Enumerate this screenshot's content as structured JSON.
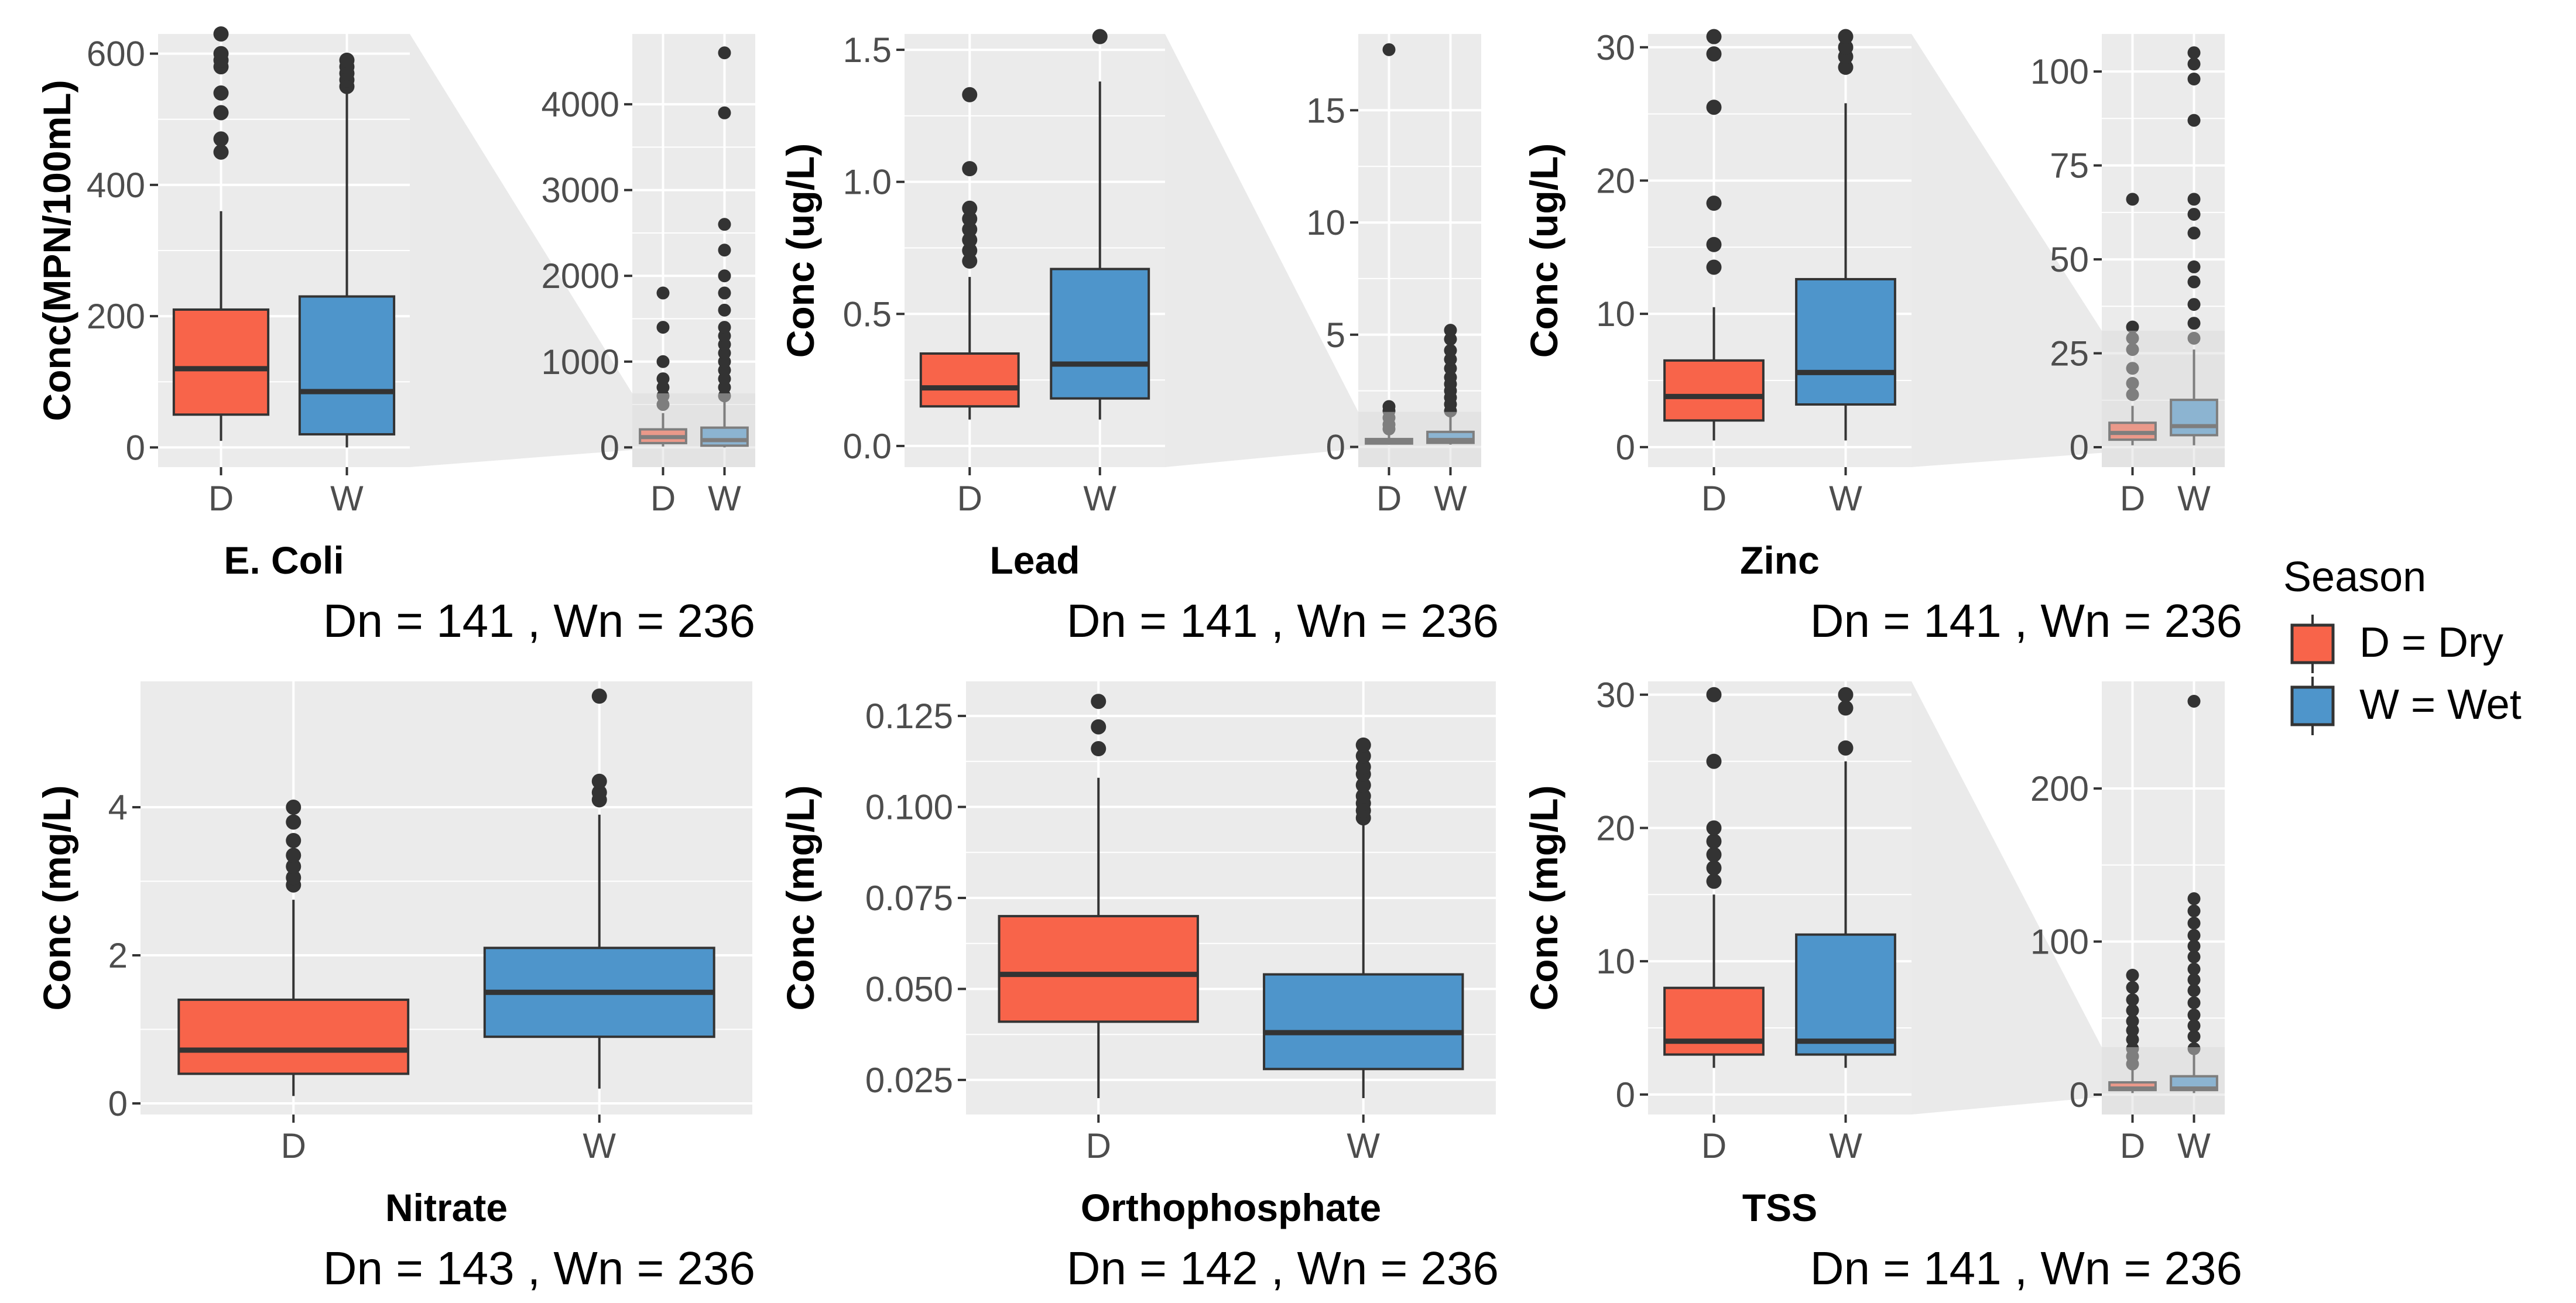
{
  "colors": {
    "dry": "#F8644A",
    "wet": "#4E95CB",
    "panel": "#EBEBEB",
    "grid": "#FFFFFF",
    "line": "#333333",
    "zoom": "#D9D9D9"
  },
  "legend": {
    "title": "Season",
    "items": [
      {
        "key": "D",
        "label": "D = Dry",
        "color": "#F8644A"
      },
      {
        "key": "W",
        "label": "W = Wet",
        "color": "#4E95CB"
      }
    ]
  },
  "chart_data": [
    {
      "type": "boxplot",
      "id": "ecoli",
      "title": "E. Coli",
      "ylabel": "Conc(MPN/100mL)",
      "count_text": "Dn =  141 , Wn =  236",
      "categories": [
        "D",
        "W"
      ],
      "main": {
        "ylim": [
          -30,
          630
        ],
        "yticks": [
          0,
          200,
          400,
          600
        ],
        "ytick_labels": [
          "0",
          "200",
          "400",
          "600"
        ],
        "boxes": [
          {
            "cat": "D",
            "q1": 50,
            "median": 120,
            "q3": 210,
            "whisker_low": 10,
            "whisker_high": 360,
            "outliers": [
              450,
              470,
              510,
              540,
              580,
              590,
              600,
              630
            ]
          },
          {
            "cat": "W",
            "q1": 20,
            "median": 85,
            "q3": 230,
            "whisker_low": 0,
            "whisker_high": 540,
            "outliers": [
              550,
              560,
              570,
              580,
              590
            ]
          }
        ]
      },
      "full": {
        "ylim": [
          -230,
          4820
        ],
        "yticks": [
          0,
          1000,
          2000,
          3000,
          4000
        ],
        "ytick_labels": [
          "0",
          "1000",
          "2000",
          "3000",
          "4000"
        ],
        "boxes": [
          {
            "cat": "D",
            "q1": 50,
            "median": 120,
            "q3": 210,
            "whisker_low": 10,
            "whisker_high": 400,
            "outliers": [
              500,
              600,
              700,
              800,
              1000,
              1400,
              1800
            ]
          },
          {
            "cat": "W",
            "q1": 20,
            "median": 85,
            "q3": 230,
            "whisker_low": 0,
            "whisker_high": 550,
            "outliers": [
              600,
              700,
              800,
              900,
              1000,
              1100,
              1200,
              1300,
              1400,
              1600,
              1800,
              2000,
              2300,
              2600,
              3900,
              4600
            ]
          }
        ]
      }
    },
    {
      "type": "boxplot",
      "id": "lead",
      "title": "Lead",
      "ylabel": "Conc (ug/L)",
      "count_text": "Dn =  141 , Wn =  236",
      "categories": [
        "D",
        "W"
      ],
      "main": {
        "ylim": [
          -0.08,
          1.56
        ],
        "yticks": [
          0,
          0.5,
          1.0,
          1.5
        ],
        "ytick_labels": [
          "0.0",
          "0.5",
          "1.0",
          "1.5"
        ],
        "boxes": [
          {
            "cat": "D",
            "q1": 0.15,
            "median": 0.22,
            "q3": 0.35,
            "whisker_low": 0.1,
            "whisker_high": 0.64,
            "outliers": [
              0.7,
              0.74,
              0.78,
              0.82,
              0.86,
              0.9,
              1.05,
              1.33
            ]
          },
          {
            "cat": "W",
            "q1": 0.18,
            "median": 0.31,
            "q3": 0.67,
            "whisker_low": 0.1,
            "whisker_high": 1.38,
            "outliers": [
              1.55
            ]
          }
        ]
      },
      "full": {
        "ylim": [
          -0.9,
          18.4
        ],
        "yticks": [
          0,
          5,
          10,
          15
        ],
        "ytick_labels": [
          "0",
          "5",
          "10",
          "15"
        ],
        "boxes": [
          {
            "cat": "D",
            "q1": 0.15,
            "median": 0.22,
            "q3": 0.35,
            "whisker_low": 0.1,
            "whisker_high": 0.64,
            "outliers": [
              0.8,
              1.0,
              1.3,
              1.6,
              1.8,
              17.7
            ]
          },
          {
            "cat": "W",
            "q1": 0.18,
            "median": 0.31,
            "q3": 0.67,
            "whisker_low": 0.1,
            "whisker_high": 1.38,
            "outliers": [
              1.6,
              1.9,
              2.2,
              2.5,
              2.8,
              3.1,
              3.5,
              3.9,
              4.3,
              4.8,
              5.2
            ]
          }
        ]
      }
    },
    {
      "type": "boxplot",
      "id": "zinc",
      "title": "Zinc",
      "ylabel": "Conc (ug/L)",
      "count_text": "Dn =  141 , Wn =  236",
      "categories": [
        "D",
        "W"
      ],
      "main": {
        "ylim": [
          -1.5,
          31
        ],
        "yticks": [
          0,
          10,
          20,
          30
        ],
        "ytick_labels": [
          "0",
          "10",
          "20",
          "30"
        ],
        "boxes": [
          {
            "cat": "D",
            "q1": 2,
            "median": 3.8,
            "q3": 6.5,
            "whisker_low": 0.5,
            "whisker_high": 10.5,
            "outliers": [
              13.5,
              15.2,
              18.3,
              25.5,
              29.5,
              30.8
            ]
          },
          {
            "cat": "W",
            "q1": 3.2,
            "median": 5.6,
            "q3": 12.6,
            "whisker_low": 0.5,
            "whisker_high": 25.8,
            "outliers": [
              28.5,
              29.3,
              30,
              30.8
            ]
          }
        ]
      },
      "full": {
        "ylim": [
          -5.3,
          110
        ],
        "yticks": [
          0,
          25,
          50,
          75,
          100
        ],
        "ytick_labels": [
          "0",
          "25",
          "50",
          "75",
          "100"
        ],
        "boxes": [
          {
            "cat": "D",
            "q1": 2,
            "median": 3.8,
            "q3": 6.5,
            "whisker_low": 0.5,
            "whisker_high": 11,
            "outliers": [
              14,
              17,
              21,
              26,
              29,
              32,
              66
            ]
          },
          {
            "cat": "W",
            "q1": 3.2,
            "median": 5.6,
            "q3": 12.6,
            "whisker_low": 0.5,
            "whisker_high": 26,
            "outliers": [
              29,
              33,
              38,
              44,
              48,
              57,
              62,
              66,
              87,
              98,
              102,
              105
            ]
          }
        ]
      }
    },
    {
      "type": "boxplot",
      "id": "nitrate",
      "title": "Nitrate",
      "ylabel": "Conc (mg/L)",
      "count_text": "Dn =  143 , Wn =  236",
      "categories": [
        "D",
        "W"
      ],
      "main": {
        "ylim": [
          -0.15,
          5.7
        ],
        "yticks": [
          0,
          2,
          4
        ],
        "ytick_labels": [
          "0",
          "2",
          "4"
        ],
        "boxes": [
          {
            "cat": "D",
            "q1": 0.4,
            "median": 0.72,
            "q3": 1.4,
            "whisker_low": 0.1,
            "whisker_high": 2.75,
            "outliers": [
              2.95,
              3.05,
              3.2,
              3.35,
              3.55,
              3.8,
              4.0
            ]
          },
          {
            "cat": "W",
            "q1": 0.9,
            "median": 1.5,
            "q3": 2.1,
            "whisker_low": 0.2,
            "whisker_high": 3.9,
            "outliers": [
              4.1,
              4.2,
              4.35,
              5.5
            ]
          }
        ]
      }
    },
    {
      "type": "boxplot",
      "id": "ortho",
      "title": "Orthophosphate",
      "ylabel": "Conc (mg/L)",
      "count_text": "Dn =  142 , Wn =  236",
      "categories": [
        "D",
        "W"
      ],
      "main": {
        "ylim": [
          0.0155,
          0.1345
        ],
        "yticks": [
          0.025,
          0.05,
          0.075,
          0.1,
          0.125
        ],
        "ytick_labels": [
          "0.025",
          "0.050",
          "0.075",
          "0.100",
          "0.125"
        ],
        "boxes": [
          {
            "cat": "D",
            "q1": 0.041,
            "median": 0.054,
            "q3": 0.07,
            "whisker_low": 0.02,
            "whisker_high": 0.108,
            "outliers": [
              0.116,
              0.122,
              0.129
            ]
          },
          {
            "cat": "W",
            "q1": 0.028,
            "median": 0.038,
            "q3": 0.054,
            "whisker_low": 0.02,
            "whisker_high": 0.095,
            "outliers": [
              0.097,
              0.099,
              0.101,
              0.103,
              0.106,
              0.109,
              0.111,
              0.114,
              0.117
            ]
          }
        ]
      }
    },
    {
      "type": "boxplot",
      "id": "tss",
      "title": "TSS",
      "ylabel": "Conc (mg/L)",
      "count_text": "Dn =  141 , Wn =  236",
      "categories": [
        "D",
        "W"
      ],
      "main": {
        "ylim": [
          -1.5,
          31
        ],
        "yticks": [
          0,
          10,
          20,
          30
        ],
        "ytick_labels": [
          "0",
          "10",
          "20",
          "30"
        ],
        "boxes": [
          {
            "cat": "D",
            "q1": 3,
            "median": 4,
            "q3": 8,
            "whisker_low": 2,
            "whisker_high": 15,
            "outliers": [
              16,
              17,
              18,
              19,
              20,
              25,
              30
            ]
          },
          {
            "cat": "W",
            "q1": 3,
            "median": 4,
            "q3": 12,
            "whisker_low": 2,
            "whisker_high": 25,
            "outliers": [
              26,
              29,
              30
            ]
          }
        ]
      },
      "full": {
        "ylim": [
          -13,
          270
        ],
        "yticks": [
          0,
          100,
          200
        ],
        "ytick_labels": [
          "0",
          "100",
          "200"
        ],
        "boxes": [
          {
            "cat": "D",
            "q1": 3,
            "median": 4,
            "q3": 8,
            "whisker_low": 1,
            "whisker_high": 17,
            "outliers": [
              20,
              25,
              30,
              36,
              42,
              48,
              55,
              62,
              70,
              78
            ]
          },
          {
            "cat": "W",
            "q1": 3,
            "median": 4,
            "q3": 12,
            "whisker_low": 1,
            "whisker_high": 26,
            "outliers": [
              30,
              38,
              45,
              52,
              60,
              68,
              75,
              82,
              90,
              97,
              104,
              112,
              120,
              128,
              257
            ]
          }
        ]
      }
    }
  ]
}
